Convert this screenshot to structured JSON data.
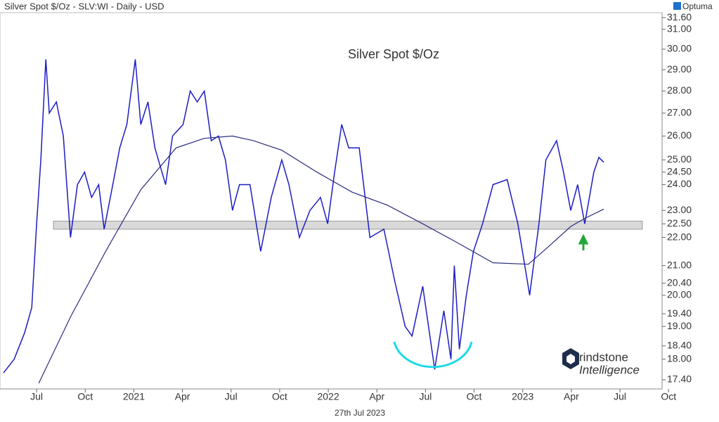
{
  "header": {
    "title": "Silver Spot $/Oz - SLV:WI - Daily - USD",
    "brand": "Optuma",
    "date": "27th Jul 2023"
  },
  "logo": {
    "line1": "rindstone",
    "line2": "Intelligence"
  },
  "chart_data": {
    "type": "line",
    "title": "Silver Spot $/Oz",
    "log_scale": true,
    "xlim": [
      3.74,
      44.6
    ],
    "ylim": [
      17.14,
      31.86
    ],
    "xticks": [
      {
        "value": 6,
        "label": "Jul"
      },
      {
        "value": 9,
        "label": "Oct"
      },
      {
        "value": 12,
        "label": "2021"
      },
      {
        "value": 15,
        "label": "Apr"
      },
      {
        "value": 18,
        "label": "Jul"
      },
      {
        "value": 21,
        "label": "Oct"
      },
      {
        "value": 24,
        "label": "2022"
      },
      {
        "value": 27,
        "label": "Apr"
      },
      {
        "value": 30,
        "label": "Jul"
      },
      {
        "value": 33,
        "label": "Oct"
      },
      {
        "value": 36,
        "label": "2023"
      },
      {
        "value": 39,
        "label": "Apr"
      },
      {
        "value": 42,
        "label": "Jul"
      },
      {
        "value": 45,
        "label": "Oct"
      }
    ],
    "yticks": [
      {
        "value": 31.6,
        "label": "31.60"
      },
      {
        "value": 31,
        "label": "31.00"
      },
      {
        "value": 30,
        "label": "30.00"
      },
      {
        "value": 29,
        "label": "29.00"
      },
      {
        "value": 28,
        "label": "28.00"
      },
      {
        "value": 27,
        "label": "27.00"
      },
      {
        "value": 26,
        "label": "26.00"
      },
      {
        "value": 25,
        "label": "25.00"
      },
      {
        "value": 24.5,
        "label": "24.50"
      },
      {
        "value": 24,
        "label": "24.00"
      },
      {
        "value": 23,
        "label": "23.00"
      },
      {
        "value": 22.5,
        "label": "22.50"
      },
      {
        "value": 22,
        "label": "22.00"
      },
      {
        "value": 21,
        "label": "21.00"
      },
      {
        "value": 20.4,
        "label": "20.40"
      },
      {
        "value": 20,
        "label": "20.00"
      },
      {
        "value": 19.4,
        "label": "19.40"
      },
      {
        "value": 19,
        "label": "19.00"
      },
      {
        "value": 18.4,
        "label": "18.40"
      },
      {
        "value": 18,
        "label": "18.00"
      },
      {
        "value": 17.4,
        "label": "17.40"
      }
    ],
    "support_band": [
      22.3,
      22.6
    ],
    "series": [
      {
        "color": "#1c1cc4",
        "x": [
          3.96,
          4.61,
          5.26,
          5.7,
          6.0,
          6.26,
          6.57,
          6.78,
          7.22,
          7.65,
          8.09,
          8.52,
          8.96,
          9.39,
          9.83,
          10.17,
          10.7,
          11.13,
          11.57,
          12.09,
          12.43,
          12.87,
          13.3,
          13.96,
          14.39,
          15.04,
          15.48,
          15.91,
          16.35,
          16.78,
          17.22,
          17.65,
          18.09,
          18.52,
          19.17,
          19.83,
          20.48,
          21.13,
          21.57,
          22.22,
          22.87,
          23.52,
          23.96,
          24.39,
          24.83,
          25.26,
          25.91,
          26.57,
          27.43,
          28.09,
          28.74,
          29.17,
          29.83,
          30.57,
          31.13,
          31.57,
          31.78,
          32.09,
          32.52,
          32.96,
          33.52,
          34.17,
          35.04,
          35.7,
          36.13,
          36.43,
          37.0,
          37.43,
          38.09,
          38.52,
          38.96,
          39.39,
          39.83,
          40.39,
          40.7,
          41.0
        ],
        "values": [
          17.6,
          18.0,
          18.8,
          19.6,
          22.5,
          25,
          29.5,
          27,
          27.5,
          26,
          22,
          24,
          24.5,
          23.5,
          24,
          22.3,
          24,
          25.5,
          26.5,
          29.5,
          26.5,
          27.5,
          25.5,
          24,
          26,
          26.5,
          28,
          27.5,
          28,
          25.8,
          26,
          25,
          23,
          24,
          24,
          21.5,
          23.5,
          25,
          24,
          22,
          23,
          23.5,
          22.5,
          24.5,
          26.5,
          25.5,
          25.5,
          22,
          22.3,
          20.5,
          19,
          18.7,
          20.3,
          17.7,
          19.5,
          18,
          21,
          18.3,
          20,
          21.5,
          22.5,
          24,
          24.2,
          22.5,
          21,
          20,
          22.5,
          25,
          25.8,
          24.5,
          23,
          24,
          22.5,
          24.5,
          25.1,
          24.9
        ]
      },
      {
        "color": "#2b2b80",
        "x": [
          6.13,
          8.09,
          10.26,
          12.43,
          14.61,
          16.35,
          18.09,
          19.39,
          21.13,
          23.3,
          25.48,
          27.65,
          29.83,
          32.0,
          34.17,
          36.35,
          37.65,
          38.96,
          39.83,
          41.0
        ],
        "values": [
          17.3,
          19.3,
          21.5,
          23.8,
          25.5,
          25.9,
          26.0,
          25.8,
          25.4,
          24.5,
          23.7,
          23.2,
          22.5,
          21.8,
          21.1,
          21.05,
          21.7,
          22.4,
          22.7,
          23.05
        ]
      }
    ]
  }
}
